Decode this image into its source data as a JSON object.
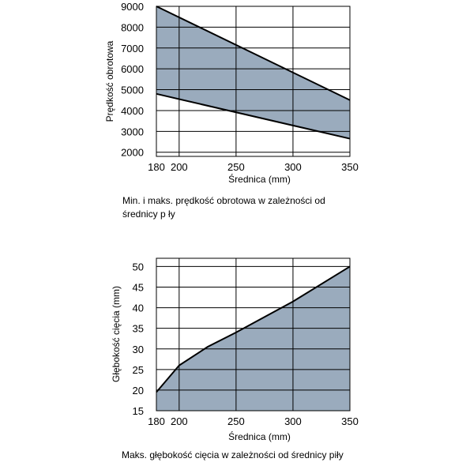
{
  "colors": {
    "fill": "#9aabbd",
    "line": "#000000",
    "grid": "#000000",
    "background": "#ffffff"
  },
  "chart_data": [
    {
      "type": "area",
      "title": "",
      "xlabel": "Średnica (mm)",
      "ylabel": "Prędkość obrotowa",
      "x_ticks": [
        "180",
        "200",
        "250",
        "300",
        "350"
      ],
      "y_ticks": [
        "2000",
        "3000",
        "4000",
        "5000",
        "6000",
        "7000",
        "8000",
        "9000"
      ],
      "xlim": [
        180,
        350
      ],
      "ylim": [
        1800,
        9000
      ],
      "grid": true,
      "band": {
        "x": [
          180,
          350
        ],
        "upper": [
          9000,
          4500
        ],
        "lower": [
          4800,
          2650
        ]
      },
      "caption": [
        "Min. i maks. prędkość obrotowa w zależności od",
        "średnicy p ły"
      ]
    },
    {
      "type": "area",
      "title": "",
      "xlabel": "Średnica (mm)",
      "ylabel": "Głębokość cięcia (mm)",
      "x_ticks": [
        "180",
        "200",
        "250",
        "300",
        "350"
      ],
      "y_ticks": [
        "15",
        "20",
        "25",
        "30",
        "35",
        "40",
        "45",
        "50"
      ],
      "xlim": [
        180,
        350
      ],
      "ylim": [
        15,
        52
      ],
      "grid": true,
      "series": [
        {
          "x": [
            180,
            200,
            225,
            250,
            300,
            350
          ],
          "values": [
            19.5,
            26,
            30.5,
            34,
            41.5,
            50
          ]
        }
      ],
      "caption": [
        "Maks. głębokość cięcia w zależności od średnicy piły"
      ]
    }
  ]
}
